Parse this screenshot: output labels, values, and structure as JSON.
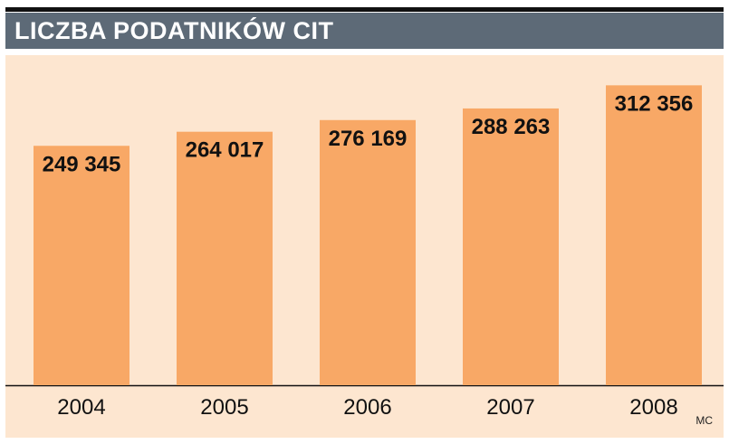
{
  "header": {
    "title": "LICZBA PODATNIKÓW CIT"
  },
  "footer": {
    "credit": "MC"
  },
  "colors": {
    "title_bar": "#5d6a77",
    "panel_background": "#fde6d0",
    "bar": "#f8a866",
    "label_text": "#111111"
  },
  "chart_data": {
    "type": "bar",
    "title": "LICZBA PODATNIKÓW CIT",
    "xlabel": "",
    "ylabel": "",
    "categories": [
      "2004",
      "2005",
      "2006",
      "2007",
      "2008"
    ],
    "values": [
      249345,
      264017,
      276169,
      288263,
      312356
    ],
    "value_labels": [
      "249 345",
      "264 017",
      "276 169",
      "288 263",
      "312 356"
    ],
    "ylim": [
      0,
      340000
    ],
    "grid": false,
    "legend": "none",
    "y_axis_visible": false
  }
}
